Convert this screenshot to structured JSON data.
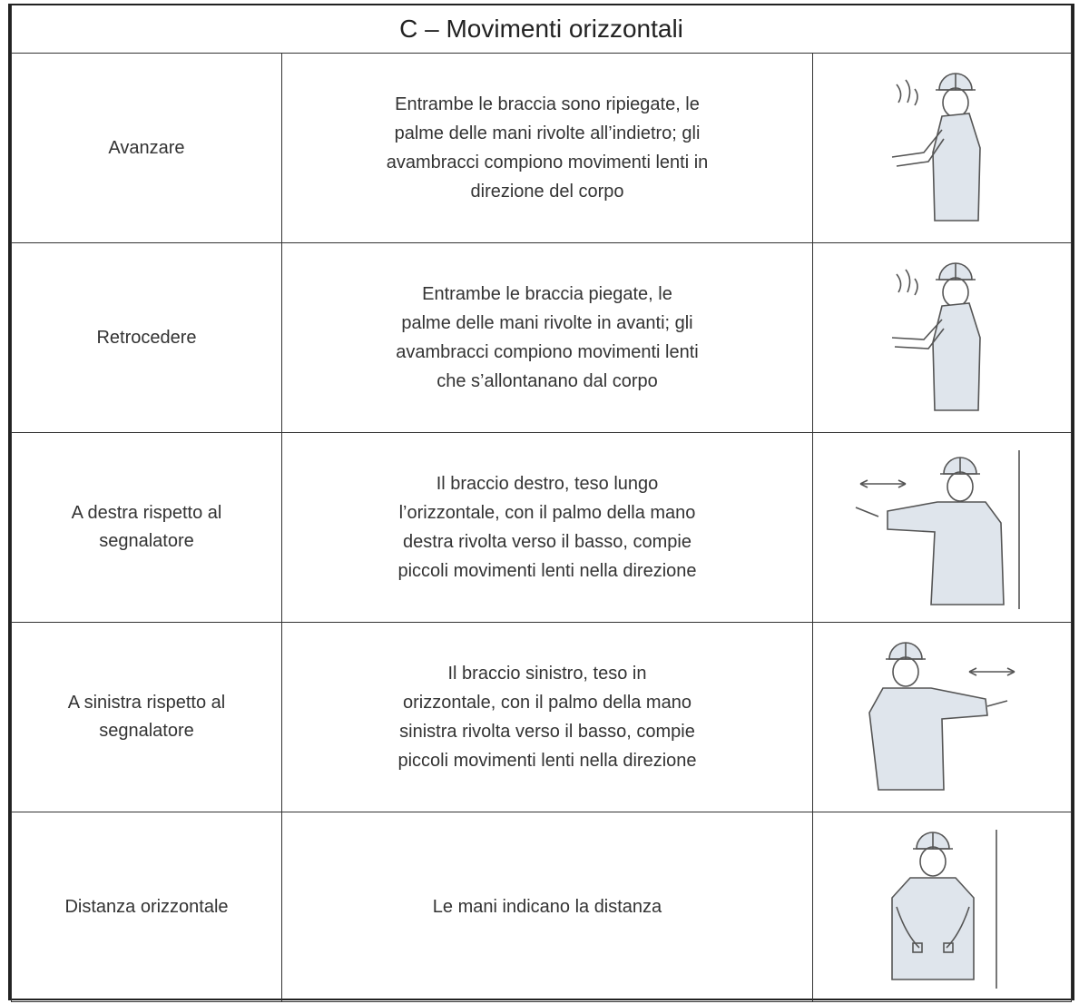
{
  "header": {
    "title": "C – Movimenti orizzontali"
  },
  "rows": [
    {
      "name": [
        "Avanzare"
      ],
      "description": [
        "Entrambe le braccia sono ripiegate, le",
        "palme delle mani rivolte all’indietro; gli",
        "avambracci compiono movimenti lenti in",
        "direzione del corpo"
      ]
    },
    {
      "name": [
        "Retrocedere"
      ],
      "description": [
        "Entrambe le braccia piegate, le",
        "palme delle mani rivolte in avanti; gli",
        "avambracci compiono movimenti lenti",
        "che s’allontanano dal corpo"
      ]
    },
    {
      "name": [
        "A destra rispetto al",
        "segnalatore"
      ],
      "description": [
        "Il braccio destro, teso lungo",
        "l’orizzontale, con il palmo della mano",
        "destra rivolta verso il basso, compie",
        "piccoli movimenti lenti nella direzione"
      ]
    },
    {
      "name": [
        "A sinistra rispetto al",
        "segnalatore"
      ],
      "description": [
        "Il braccio sinistro, teso in",
        "orizzontale, con il palmo della mano",
        "sinistra rivolta verso il basso, compie",
        "piccoli movimenti lenti nella direzione"
      ]
    },
    {
      "name": [
        "Distanza orizzontale"
      ],
      "description": [
        "Le mani indicano la distanza"
      ]
    }
  ]
}
